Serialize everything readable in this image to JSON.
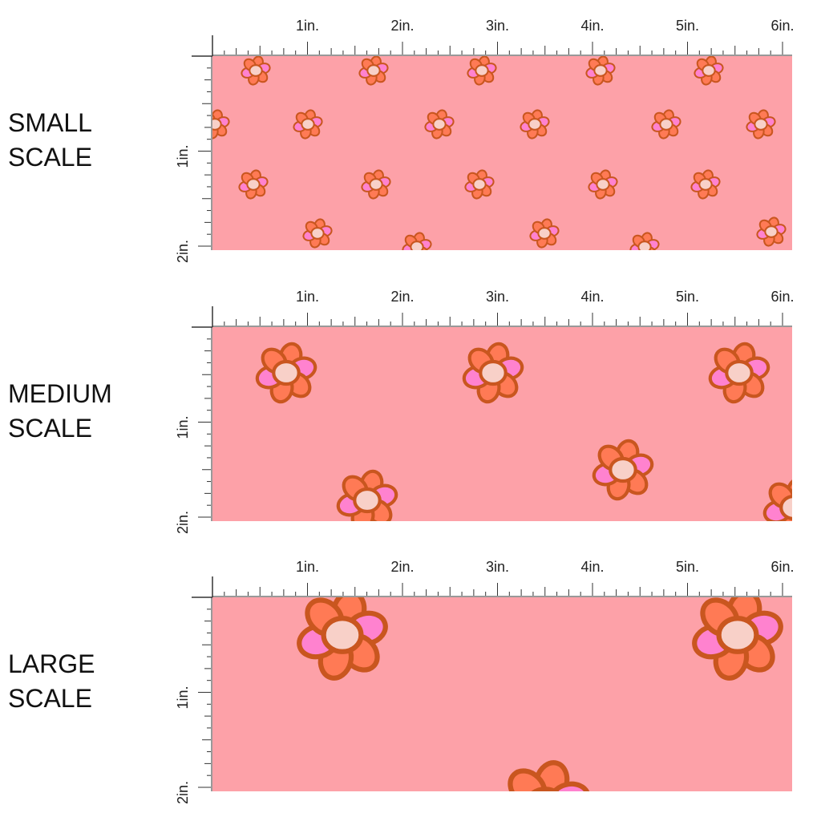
{
  "panels": [
    {
      "label": [
        "SMALL",
        "SCALE"
      ]
    },
    {
      "label": [
        "MEDIUM",
        "SCALE"
      ]
    },
    {
      "label": [
        "LARGE",
        "SCALE"
      ]
    }
  ],
  "ruler": {
    "horizontal": [
      "1in.",
      "2in.",
      "3in.",
      "4in.",
      "5in.",
      "6in."
    ],
    "vertical": [
      "1in.",
      "2in."
    ]
  }
}
